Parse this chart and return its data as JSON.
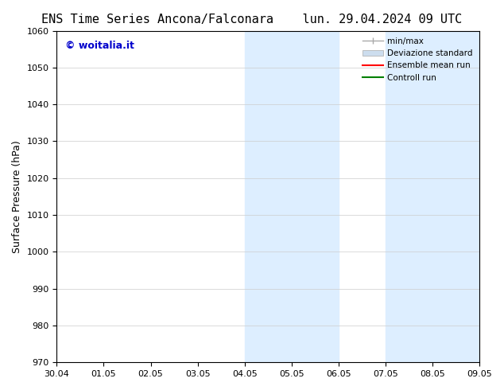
{
  "title_left": "ENS Time Series Ancona/Falconara",
  "title_right": "lun. 29.04.2024 09 UTC",
  "ylabel": "Surface Pressure (hPa)",
  "ylim": [
    970,
    1060
  ],
  "yticks": [
    970,
    980,
    990,
    1000,
    1010,
    1020,
    1030,
    1040,
    1050,
    1060
  ],
  "xtick_labels": [
    "30.04",
    "01.05",
    "02.05",
    "03.05",
    "04.05",
    "05.05",
    "06.05",
    "07.05",
    "08.05",
    "09.05"
  ],
  "xtick_positions": [
    0,
    1,
    2,
    3,
    4,
    5,
    6,
    7,
    8,
    9
  ],
  "shaded_bands": [
    {
      "x_start": 4,
      "x_end": 5,
      "color": "#ddeeff"
    },
    {
      "x_start": 5,
      "x_end": 6,
      "color": "#ddeeff"
    },
    {
      "x_start": 7,
      "x_end": 8,
      "color": "#ddeeff"
    },
    {
      "x_start": 8,
      "x_end": 9,
      "color": "#ddeeff"
    }
  ],
  "watermark_text": "© woitalia.it",
  "watermark_color": "#0000cc",
  "legend_entries": [
    {
      "label": "min/max",
      "color": "#aaaaaa",
      "lw": 1,
      "style": "line_with_ticks"
    },
    {
      "label": "Deviazione standard",
      "color": "#ccddee",
      "lw": 6,
      "style": "thick"
    },
    {
      "label": "Ensemble mean run",
      "color": "#ff0000",
      "lw": 1.5,
      "style": "line"
    },
    {
      "label": "Controll run",
      "color": "#008000",
      "lw": 1.5,
      "style": "line"
    }
  ],
  "bg_color": "#ffffff",
  "spine_color": "#000000",
  "grid_color": "#cccccc",
  "title_fontsize": 11,
  "tick_fontsize": 8,
  "ylabel_fontsize": 9
}
